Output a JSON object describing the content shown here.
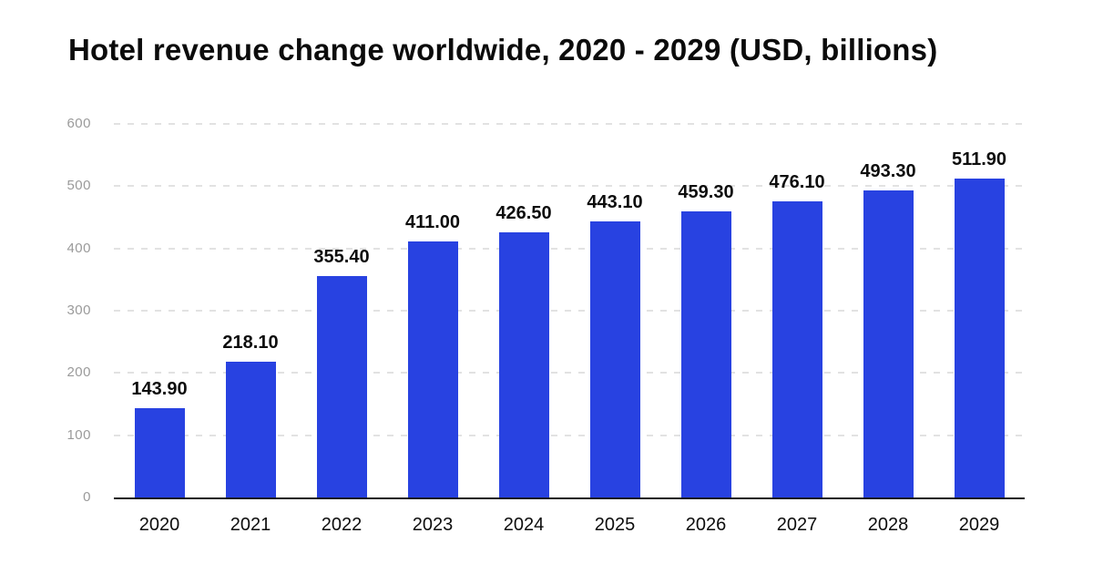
{
  "background": "#ffffff",
  "chart_data": {
    "type": "bar",
    "title": "Hotel revenue change worldwide, 2020 - 2029 (USD, billions)",
    "categories": [
      "2020",
      "2021",
      "2022",
      "2023",
      "2024",
      "2025",
      "2026",
      "2027",
      "2028",
      "2029"
    ],
    "values": [
      143.9,
      218.1,
      355.4,
      411.0,
      426.5,
      443.1,
      459.3,
      476.1,
      493.3,
      511.9
    ],
    "value_labels": [
      "143.90",
      "218.10",
      "355.40",
      "411.00",
      "426.50",
      "443.10",
      "459.30",
      "476.10",
      "493.30",
      "511.90"
    ],
    "xlabel": "",
    "ylabel": "",
    "ylim": [
      0,
      600
    ],
    "yticks": [
      0,
      100,
      200,
      300,
      400,
      500,
      600
    ],
    "grid": "horizontal-dashed",
    "legend": "none",
    "colors": {
      "bar": "#2842e1",
      "axis": "#1a1a1a",
      "grid": "#e2e2e2",
      "tick_label": "#9a9a9a",
      "data_label": "#0d0d0d",
      "title": "#0b0b0b",
      "background": "#ffffff"
    }
  }
}
